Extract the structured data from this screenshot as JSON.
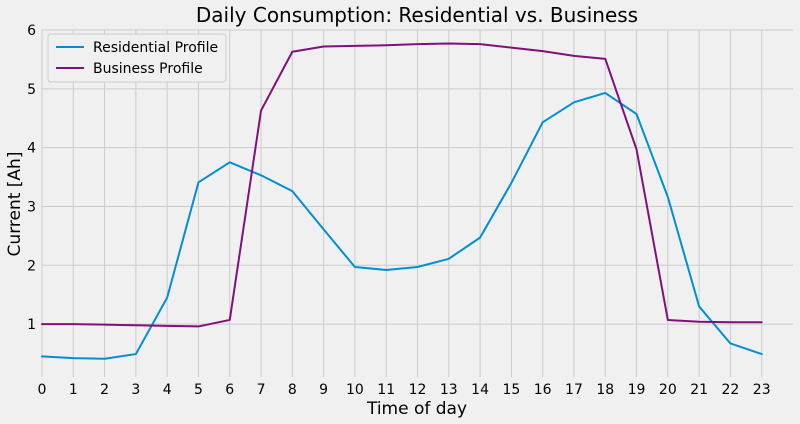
{
  "chart_data": {
    "type": "line",
    "title": "Daily Consumption: Residential vs. Business",
    "xlabel": "Time of day",
    "ylabel": "Current [Ah]",
    "x": [
      0,
      1,
      2,
      3,
      4,
      5,
      6,
      7,
      8,
      9,
      10,
      11,
      12,
      13,
      14,
      15,
      16,
      17,
      18,
      19,
      20,
      21,
      22,
      23
    ],
    "xticks": [
      "0",
      "1",
      "2",
      "3",
      "4",
      "5",
      "6",
      "7",
      "8",
      "9",
      "10",
      "11",
      "12",
      "13",
      "14",
      "15",
      "16",
      "17",
      "18",
      "19",
      "20",
      "21",
      "22",
      "23"
    ],
    "yticks": [
      "1",
      "2",
      "3",
      "4",
      "5",
      "6"
    ],
    "xlim": [
      0,
      24
    ],
    "ylim": [
      0.1,
      6.0
    ],
    "grid": true,
    "legend_position": "upper-left",
    "series": [
      {
        "name": "Residential Profile",
        "color": "#008fd5",
        "values": [
          0.45,
          0.42,
          0.41,
          0.49,
          1.45,
          3.41,
          3.75,
          3.53,
          3.26,
          2.61,
          1.97,
          1.92,
          1.97,
          2.11,
          2.47,
          3.4,
          4.43,
          4.77,
          4.93,
          4.57,
          3.16,
          1.3,
          0.67,
          0.49
        ]
      },
      {
        "name": "Business Profile",
        "color": "#810f7c",
        "values": [
          1.0,
          1.0,
          0.99,
          0.98,
          0.97,
          0.96,
          1.07,
          4.63,
          5.63,
          5.72,
          5.73,
          5.74,
          5.76,
          5.77,
          5.76,
          5.7,
          5.64,
          5.56,
          5.51,
          3.97,
          1.07,
          1.04,
          1.03,
          1.03
        ]
      }
    ]
  }
}
